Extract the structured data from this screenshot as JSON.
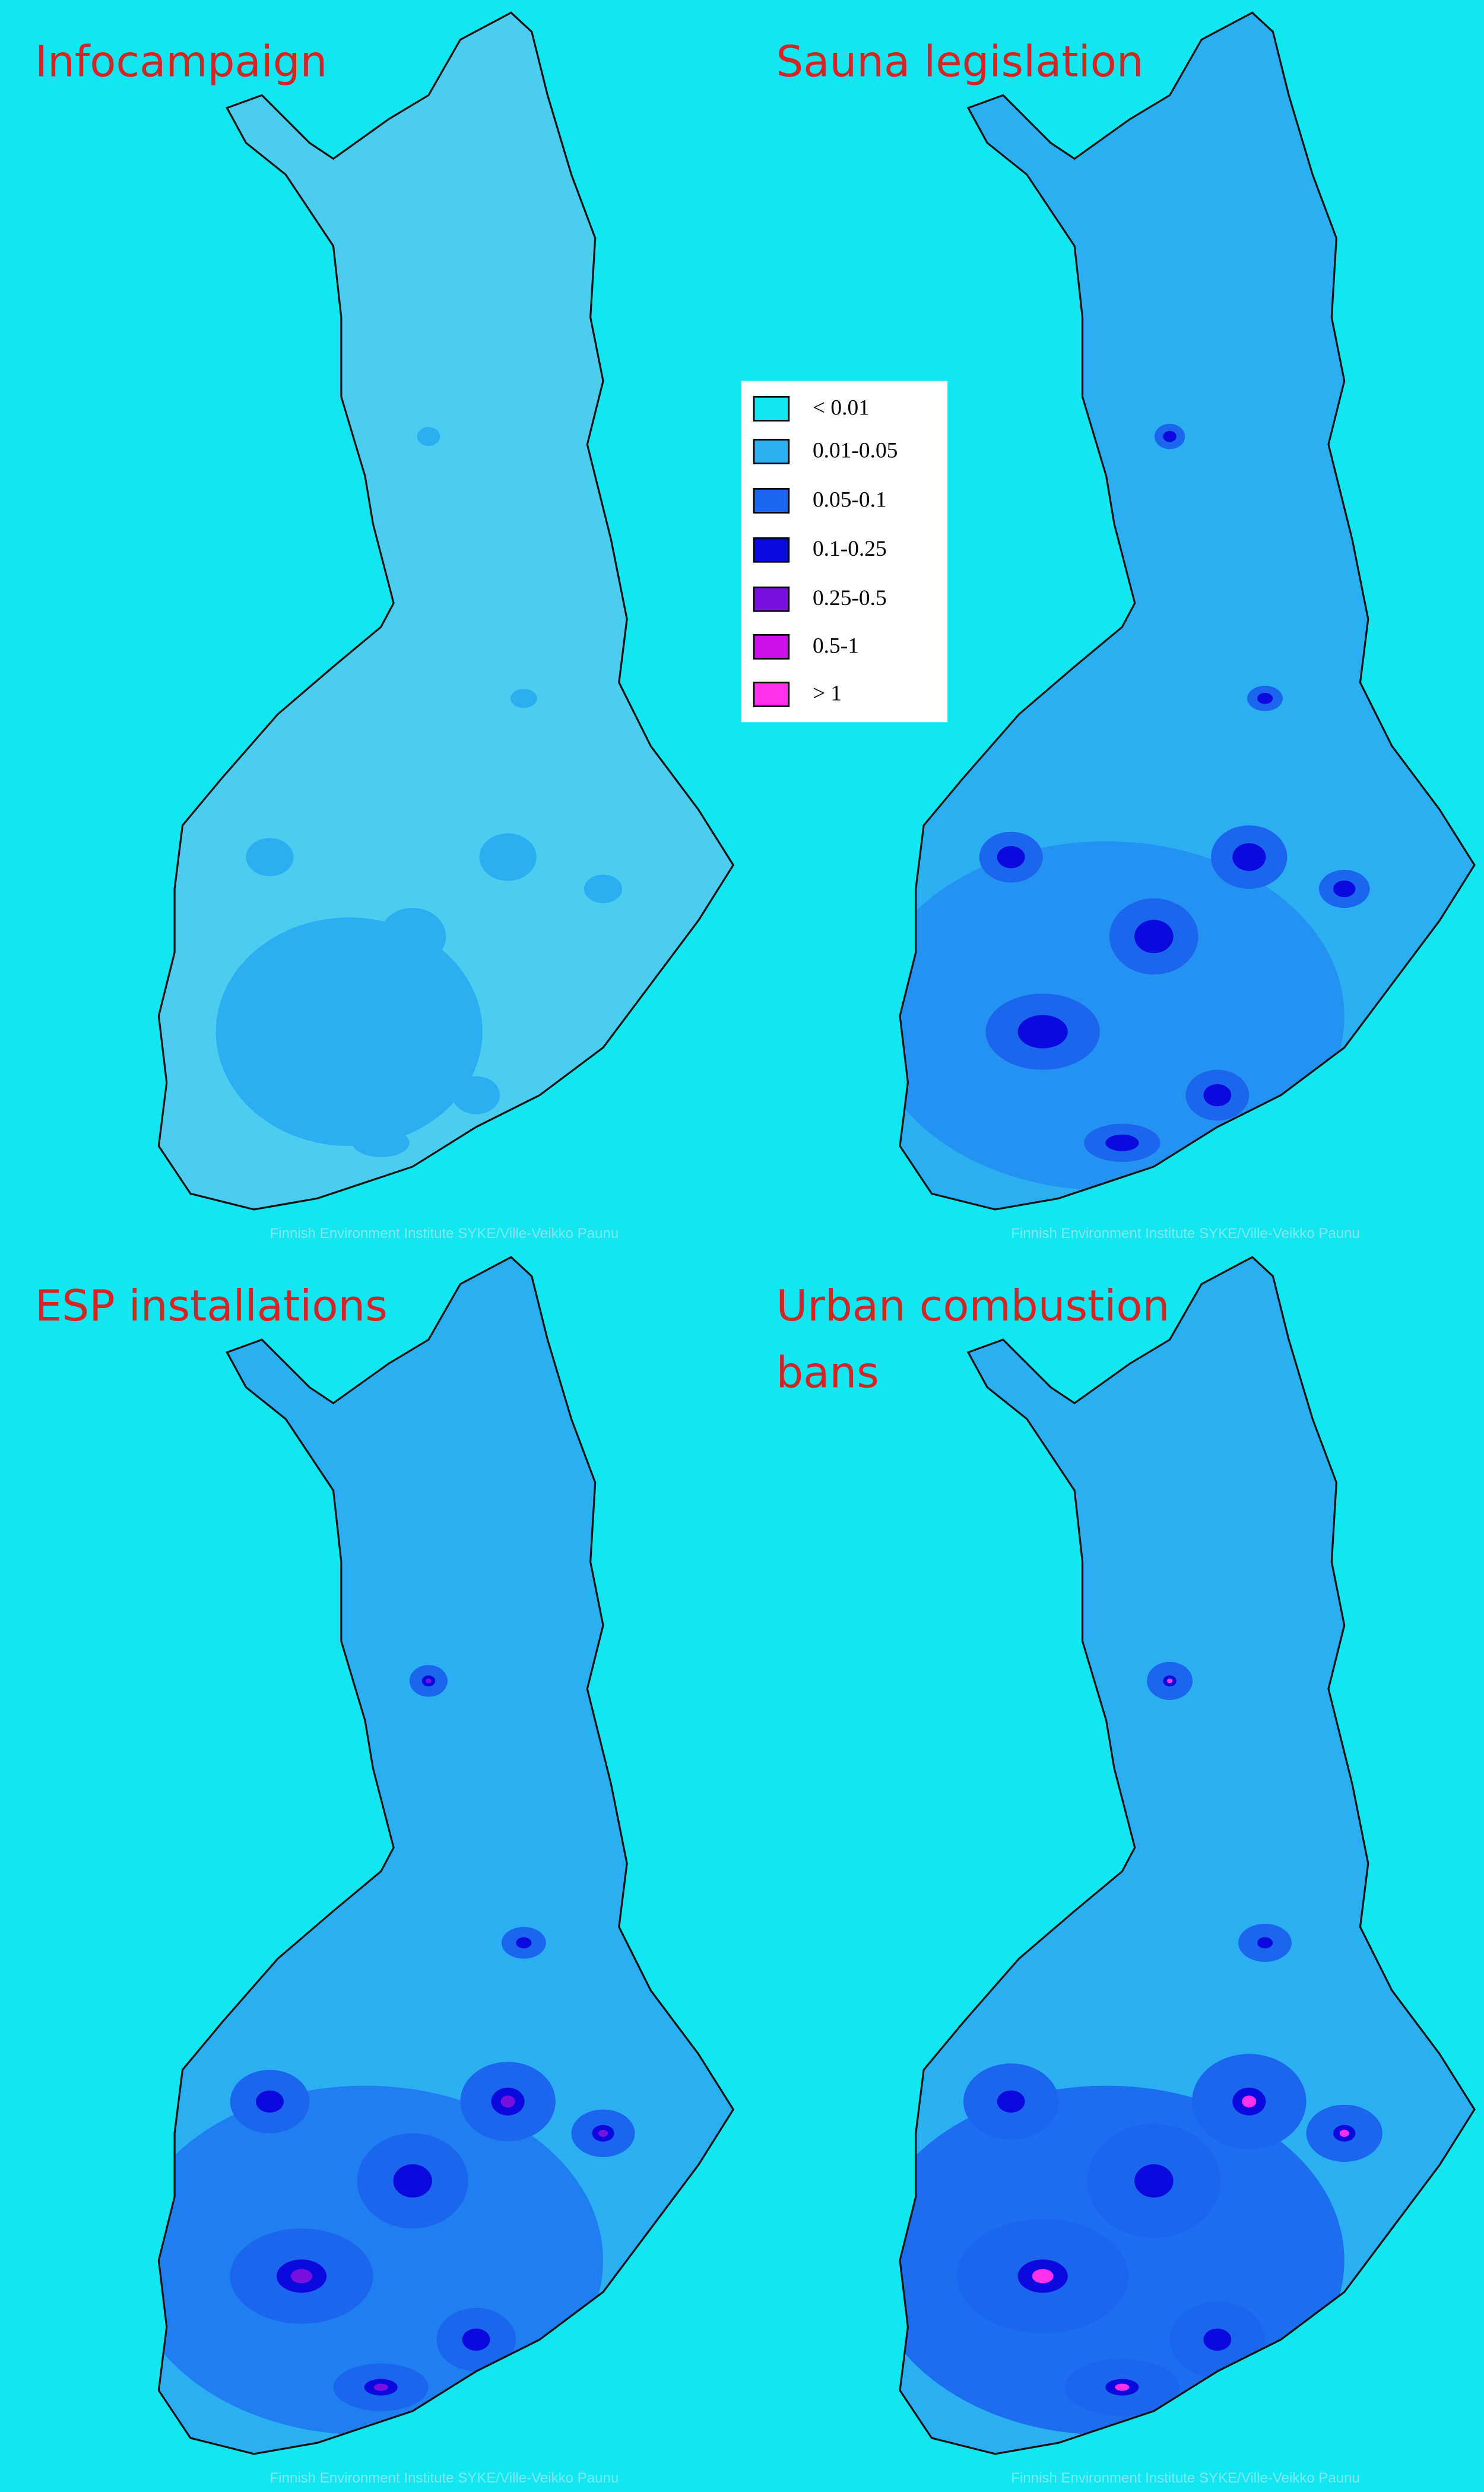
{
  "panels": [
    {
      "title_lines": [
        "Infocampaign"
      ],
      "credit": "Finnish Environment Institute SYKE/Ville-Veikko Paunu"
    },
    {
      "title_lines": [
        "Sauna legislation"
      ],
      "credit": "Finnish Environment Institute SYKE/Ville-Veikko Paunu"
    },
    {
      "title_lines": [
        "ESP installations"
      ],
      "credit": "Finnish Environment Institute SYKE/Ville-Veikko Paunu"
    },
    {
      "title_lines": [
        "Urban combustion",
        "bans"
      ],
      "credit": "Finnish Environment Institute SYKE/Ville-Veikko Paunu"
    }
  ],
  "legend": {
    "items": [
      {
        "label": "< 0.01",
        "color": "#12e6f0"
      },
      {
        "label": "0.01-0.05",
        "color": "#2ab0f2"
      },
      {
        "label": "0.05-0.1",
        "color": "#1c66ee"
      },
      {
        "label": "0.1-0.25",
        "color": "#0a0ade"
      },
      {
        "label": "0.25-0.5",
        "color": "#7a10e0"
      },
      {
        "label": "0.5-1",
        "color": "#cc10e8"
      },
      {
        "label": "> 1",
        "color": "#ff30ea"
      }
    ]
  }
}
